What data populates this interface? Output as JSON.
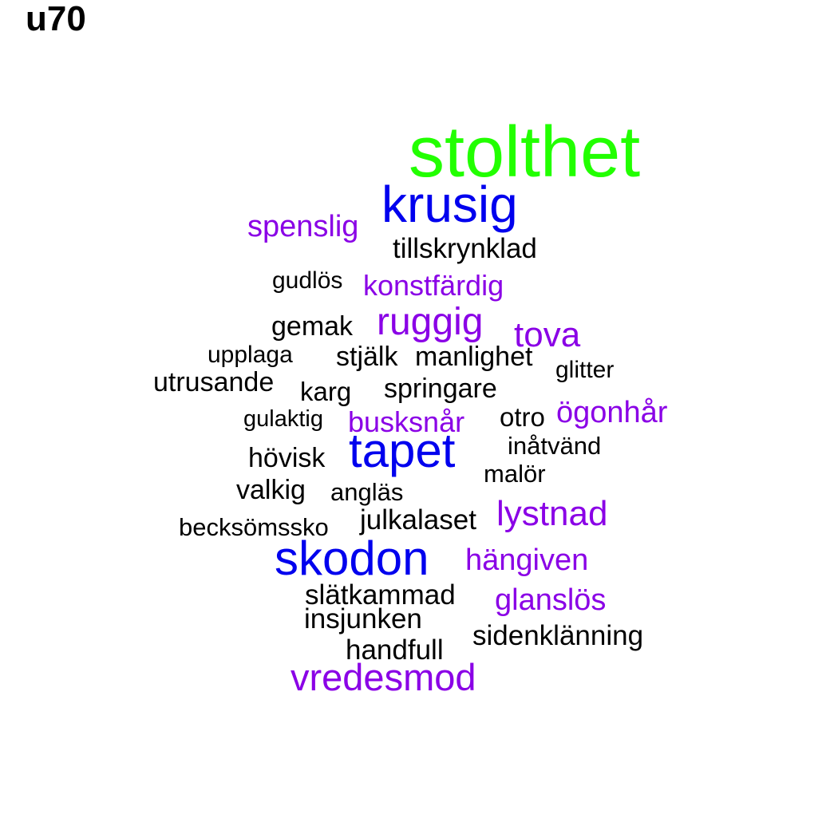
{
  "title": "u70",
  "colors": {
    "green": "#22ff00",
    "blue": "#0000ee",
    "purple": "#8a00e6",
    "black": "#000000"
  },
  "words": [
    {
      "text": "stolthet",
      "color": "green"
    },
    {
      "text": "krusig",
      "color": "blue"
    },
    {
      "text": "spenslig",
      "color": "purple"
    },
    {
      "text": "tillskrynklad",
      "color": "black"
    },
    {
      "text": "gudlös",
      "color": "black"
    },
    {
      "text": "konstfärdig",
      "color": "purple"
    },
    {
      "text": "gemak",
      "color": "black"
    },
    {
      "text": "ruggig",
      "color": "purple"
    },
    {
      "text": "tova",
      "color": "purple"
    },
    {
      "text": "upplaga",
      "color": "black"
    },
    {
      "text": "stjälk",
      "color": "black"
    },
    {
      "text": "manlighet",
      "color": "black"
    },
    {
      "text": "glitter",
      "color": "black"
    },
    {
      "text": "utrusande",
      "color": "black"
    },
    {
      "text": "karg",
      "color": "black"
    },
    {
      "text": "springare",
      "color": "black"
    },
    {
      "text": "gulaktig",
      "color": "black"
    },
    {
      "text": "busksnår",
      "color": "purple"
    },
    {
      "text": "otro",
      "color": "black"
    },
    {
      "text": "ögonhår",
      "color": "purple"
    },
    {
      "text": "tapet",
      "color": "blue"
    },
    {
      "text": "inåtvänd",
      "color": "black"
    },
    {
      "text": "hövisk",
      "color": "black"
    },
    {
      "text": "malör",
      "color": "black"
    },
    {
      "text": "valkig",
      "color": "black"
    },
    {
      "text": "angläs",
      "color": "black"
    },
    {
      "text": "lystnad",
      "color": "purple"
    },
    {
      "text": "julkalaset",
      "color": "black"
    },
    {
      "text": "becksömssko",
      "color": "black"
    },
    {
      "text": "skodon",
      "color": "blue"
    },
    {
      "text": "hängiven",
      "color": "purple"
    },
    {
      "text": "slätkammad",
      "color": "black"
    },
    {
      "text": "glanslös",
      "color": "purple"
    },
    {
      "text": "insjunken",
      "color": "black"
    },
    {
      "text": "sidenklänning",
      "color": "black"
    },
    {
      "text": "handfull",
      "color": "black"
    },
    {
      "text": "vredesmod",
      "color": "purple"
    }
  ]
}
